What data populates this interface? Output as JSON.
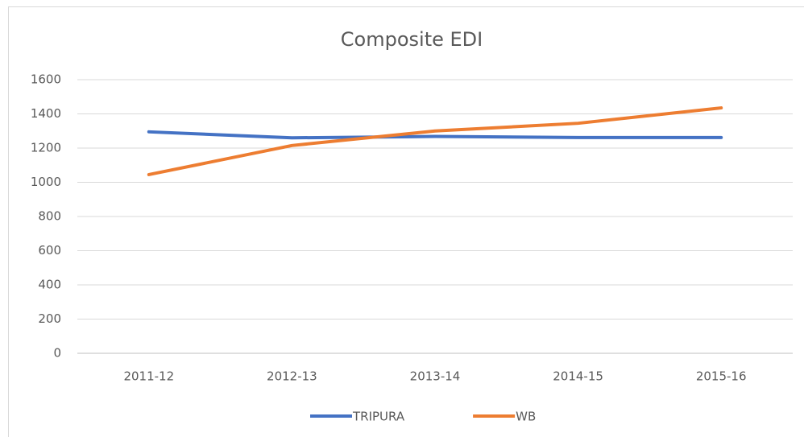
{
  "chart_data": {
    "type": "line",
    "title": "Composite EDI",
    "categories": [
      "2011-12",
      "2012-13",
      "2013-14",
      "2014-15",
      "2015-16"
    ],
    "series": [
      {
        "name": "TRIPURA",
        "color": "#4472c4",
        "values": [
          1295,
          1260,
          1268,
          1262,
          1262
        ]
      },
      {
        "name": "WB",
        "color": "#ed7d31",
        "values": [
          1045,
          1215,
          1300,
          1345,
          1435
        ]
      }
    ],
    "ylim": [
      0,
      1600
    ],
    "yticks": [
      0,
      200,
      400,
      600,
      800,
      1000,
      1200,
      1400,
      1600
    ],
    "grid": true,
    "legend": "bottom"
  }
}
